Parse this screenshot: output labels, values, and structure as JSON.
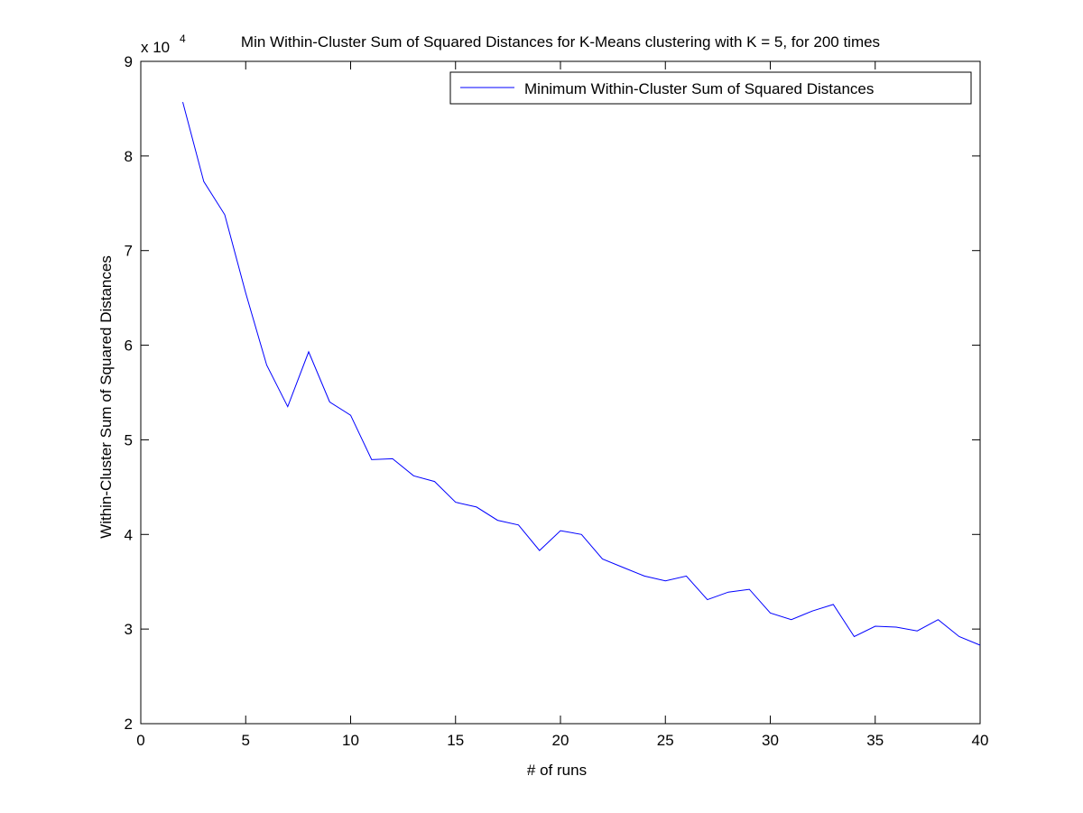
{
  "chart_data": {
    "type": "line",
    "title": "Min Within-Cluster Sum of Squared Distances for K-Means clustering with K = 5, for 200 times",
    "xlabel": "# of runs",
    "ylabel": "Within-Cluster Sum of Squared Distances",
    "y_multiplier_label": "x 10",
    "y_multiplier_exponent": "4",
    "xlim": [
      0,
      40
    ],
    "ylim": [
      2,
      9
    ],
    "xticks": [
      0,
      5,
      10,
      15,
      20,
      25,
      30,
      35,
      40
    ],
    "yticks": [
      2,
      3,
      4,
      5,
      6,
      7,
      8,
      9
    ],
    "grid": false,
    "legend_position": "top-right",
    "series": [
      {
        "name": "Minimum Within-Cluster Sum of Squared Distances",
        "color": "#0000ff",
        "x": [
          2,
          3,
          4,
          5,
          6,
          7,
          8,
          9,
          10,
          11,
          12,
          13,
          14,
          15,
          16,
          17,
          18,
          19,
          20,
          21,
          22,
          23,
          24,
          25,
          26,
          27,
          28,
          29,
          30,
          31,
          32,
          33,
          34,
          35,
          36,
          37,
          38,
          39,
          40
        ],
        "y": [
          8.57,
          7.73,
          7.38,
          6.55,
          5.79,
          5.35,
          5.93,
          5.4,
          5.26,
          4.79,
          4.8,
          4.62,
          4.56,
          4.34,
          4.29,
          4.15,
          4.1,
          3.83,
          4.04,
          4.0,
          3.74,
          3.65,
          3.56,
          3.51,
          3.56,
          3.31,
          3.39,
          3.42,
          3.17,
          3.1,
          3.19,
          3.26,
          2.92,
          3.03,
          3.02,
          2.98,
          3.1,
          2.92,
          2.83
        ]
      }
    ]
  }
}
